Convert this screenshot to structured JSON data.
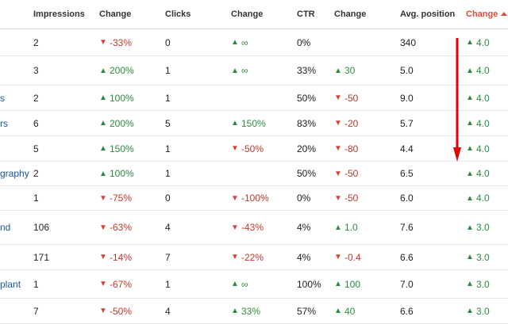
{
  "columns": {
    "impressions": "Impressions",
    "impressions_change": "Change",
    "clicks": "Clicks",
    "clicks_change": "Change",
    "ctr": "CTR",
    "ctr_change": "Change",
    "avg_position": "Avg. position",
    "position_change": "Change"
  },
  "colors": {
    "up": "#2c8b3e",
    "down": "#c0392b",
    "link": "#1a55a8",
    "sorted": "#dd4b39",
    "annotation": "#e00000"
  },
  "rows": [
    {
      "query": "",
      "impressions": "2",
      "imp_change": "-33%",
      "imp_dir": "down",
      "clicks": "0",
      "clk_change": "∞",
      "clk_dir": "up",
      "ctr": "0%",
      "ctr_change": "",
      "ctr_dir": "",
      "position": "340",
      "pos_change": "4.0",
      "pos_dir": "up"
    },
    {
      "query": "",
      "impressions": "3",
      "imp_change": "200%",
      "imp_dir": "up",
      "clicks": "1",
      "clk_change": "∞",
      "clk_dir": "up",
      "ctr": "33%",
      "ctr_change": "30",
      "ctr_dir": "up",
      "position": "5.0",
      "pos_change": "4.0",
      "pos_dir": "up"
    },
    {
      "query": "s",
      "impressions": "2",
      "imp_change": "100%",
      "imp_dir": "up",
      "clicks": "1",
      "clk_change": "",
      "clk_dir": "",
      "ctr": "50%",
      "ctr_change": "-50",
      "ctr_dir": "down",
      "position": "9.0",
      "pos_change": "4.0",
      "pos_dir": "up"
    },
    {
      "query": "rs",
      "impressions": "6",
      "imp_change": "200%",
      "imp_dir": "up",
      "clicks": "5",
      "clk_change": "150%",
      "clk_dir": "up",
      "ctr": "83%",
      "ctr_change": "-20",
      "ctr_dir": "down",
      "position": "5.7",
      "pos_change": "4.0",
      "pos_dir": "up"
    },
    {
      "query": "",
      "impressions": "5",
      "imp_change": "150%",
      "imp_dir": "up",
      "clicks": "1",
      "clk_change": "-50%",
      "clk_dir": "down",
      "ctr": "20%",
      "ctr_change": "-80",
      "ctr_dir": "down",
      "position": "4.4",
      "pos_change": "4.0",
      "pos_dir": "up"
    },
    {
      "query": "graphy",
      "impressions": "2",
      "imp_change": "100%",
      "imp_dir": "up",
      "clicks": "1",
      "clk_change": "",
      "clk_dir": "",
      "ctr": "50%",
      "ctr_change": "-50",
      "ctr_dir": "down",
      "position": "6.5",
      "pos_change": "4.0",
      "pos_dir": "up"
    },
    {
      "query": "",
      "impressions": "1",
      "imp_change": "-75%",
      "imp_dir": "down",
      "clicks": "0",
      "clk_change": "-100%",
      "clk_dir": "down",
      "ctr": "0%",
      "ctr_change": "-50",
      "ctr_dir": "down",
      "position": "6.0",
      "pos_change": "4.0",
      "pos_dir": "up"
    },
    {
      "query": "nd",
      "impressions": "106",
      "imp_change": "-63%",
      "imp_dir": "down",
      "clicks": "4",
      "clk_change": "-43%",
      "clk_dir": "down",
      "ctr": "4%",
      "ctr_change": "1.0",
      "ctr_dir": "up",
      "position": "7.6",
      "pos_change": "3.0",
      "pos_dir": "up"
    },
    {
      "query": "",
      "impressions": "171",
      "imp_change": "-14%",
      "imp_dir": "down",
      "clicks": "7",
      "clk_change": "-22%",
      "clk_dir": "down",
      "ctr": "4%",
      "ctr_change": "-0.4",
      "ctr_dir": "down",
      "position": "6.6",
      "pos_change": "3.0",
      "pos_dir": "up"
    },
    {
      "query": "plant",
      "impressions": "1",
      "imp_change": "-67%",
      "imp_dir": "down",
      "clicks": "1",
      "clk_change": "∞",
      "clk_dir": "up",
      "ctr": "100%",
      "ctr_change": "100",
      "ctr_dir": "up",
      "position": "7.0",
      "pos_change": "3.0",
      "pos_dir": "up"
    },
    {
      "query": "",
      "impressions": "7",
      "imp_change": "-50%",
      "imp_dir": "down",
      "clicks": "4",
      "clk_change": "33%",
      "clk_dir": "up",
      "ctr": "57%",
      "ctr_change": "40",
      "ctr_dir": "up",
      "position": "6.6",
      "pos_change": "3.0",
      "pos_dir": "up"
    }
  ]
}
